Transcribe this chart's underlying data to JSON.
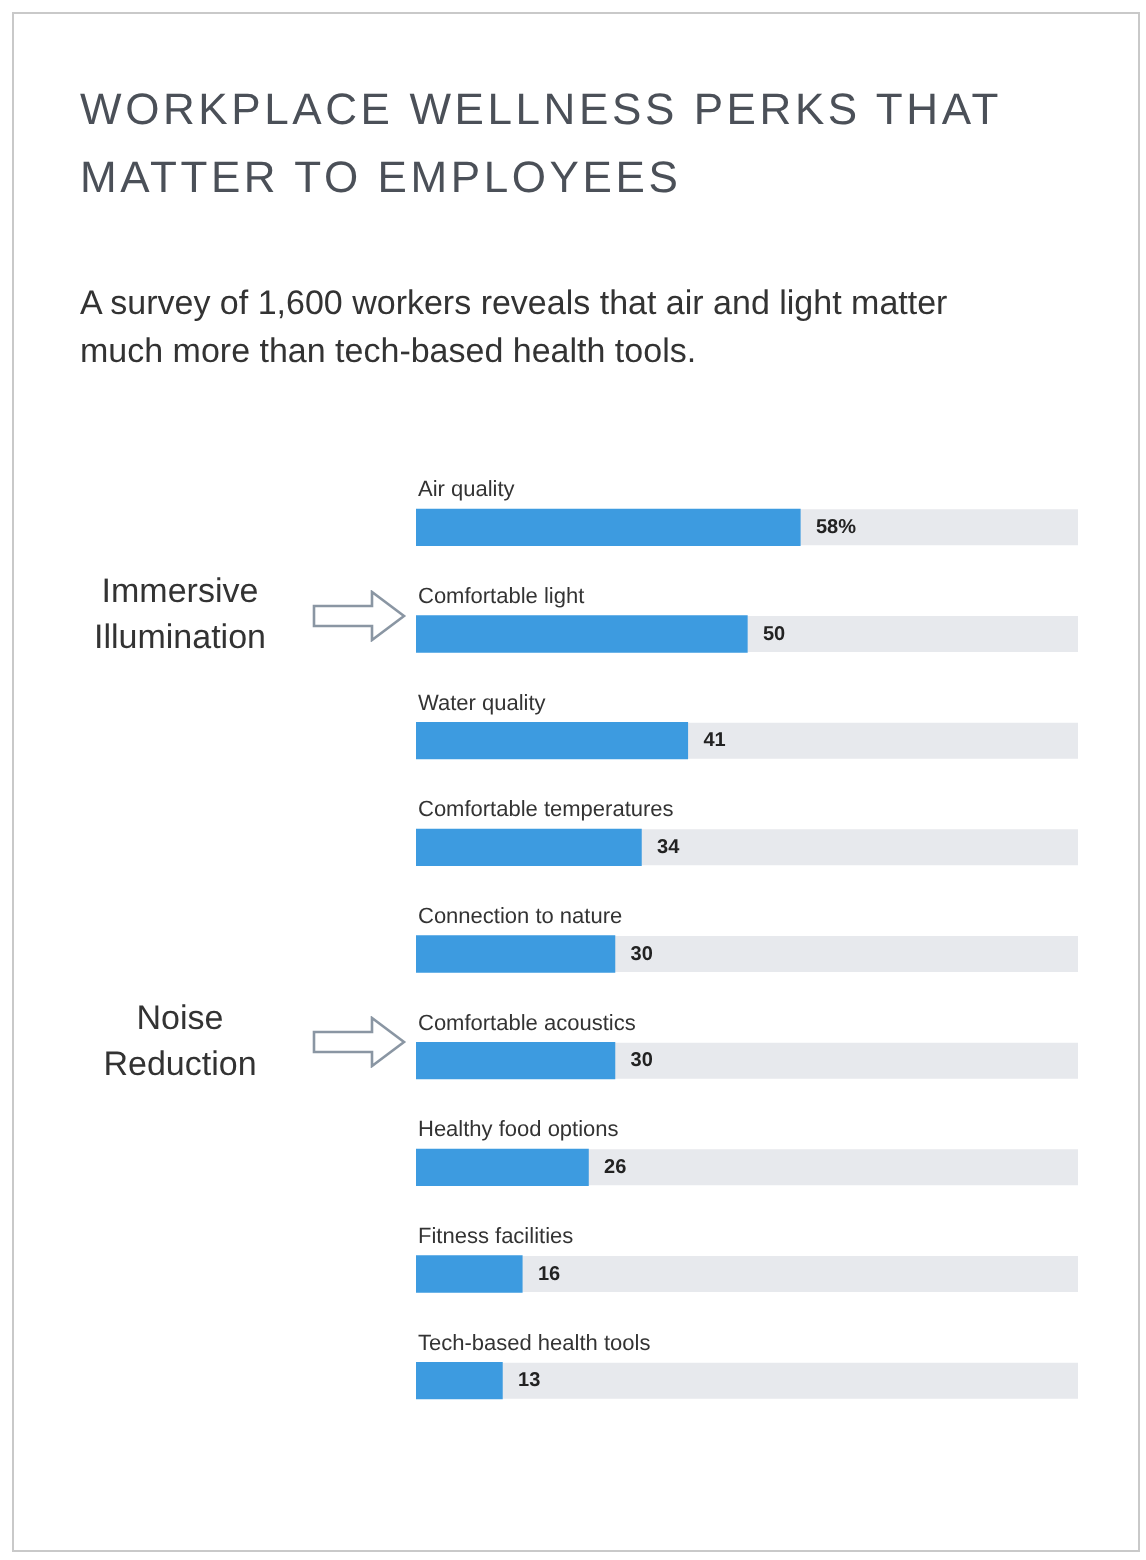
{
  "chart_data": {
    "type": "bar",
    "orientation": "horizontal",
    "title": "WORKPLACE WELLNESS PERKS THAT MATTER TO EMPLOYEES",
    "subtitle": "A survey of 1,600 workers reveals that air and light matter much more than tech-based health tools.",
    "categories": [
      "Air quality",
      "Comfortable light",
      "Water quality",
      "Comfortable temperatures",
      "Connection to nature",
      "Comfortable acoustics",
      "Healthy food options",
      "Fitness facilities",
      "Tech-based health tools"
    ],
    "values": [
      58,
      50,
      41,
      34,
      30,
      30,
      26,
      16,
      13
    ],
    "value_labels": [
      "58%",
      "50",
      "41",
      "34",
      "30",
      "30",
      "26",
      "16",
      "13"
    ],
    "color": "#3d9be0",
    "xlim": [
      0,
      100
    ],
    "tick_labels": false,
    "legend": false,
    "annotations": [
      "Immersive Illumination",
      "Noise Reduction"
    ]
  }
}
